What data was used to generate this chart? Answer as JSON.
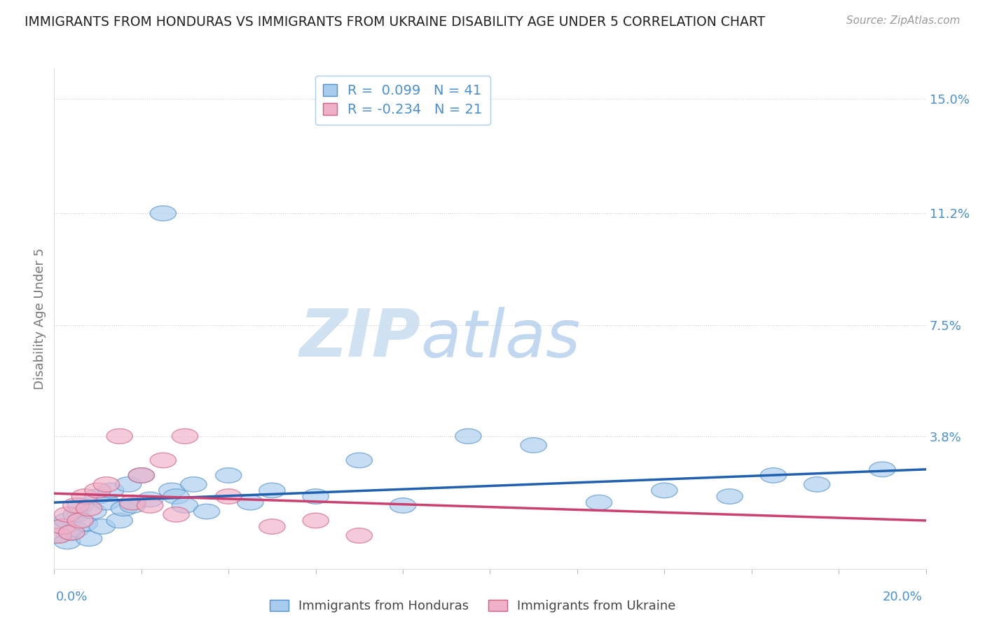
{
  "title": "IMMIGRANTS FROM HONDURAS VS IMMIGRANTS FROM UKRAINE DISABILITY AGE UNDER 5 CORRELATION CHART",
  "source": "Source: ZipAtlas.com",
  "ylabel": "Disability Age Under 5",
  "yticks": [
    0.0,
    0.038,
    0.075,
    0.112,
    0.15
  ],
  "ytick_labels": [
    "",
    "3.8%",
    "7.5%",
    "11.2%",
    "15.0%"
  ],
  "xmin": 0.0,
  "xmax": 0.2,
  "ymin": -0.006,
  "ymax": 0.16,
  "legend1_r": "R =  0.099",
  "legend1_n": "N = 41",
  "legend2_r": "R = -0.234",
  "legend2_n": "N = 21",
  "color_honduras_fill": "#A8CCEE",
  "color_honduras_edge": "#5090CC",
  "color_ukraine_fill": "#F0B0C8",
  "color_ukraine_edge": "#D06080",
  "color_line_honduras": "#2060B0",
  "color_line_ukraine": "#CC4070",
  "color_axis_text": "#4A90D0",
  "background": "#FFFFFF",
  "honduras_x": [
    0.001,
    0.002,
    0.003,
    0.003,
    0.004,
    0.005,
    0.005,
    0.006,
    0.007,
    0.008,
    0.009,
    0.01,
    0.011,
    0.012,
    0.013,
    0.015,
    0.016,
    0.017,
    0.018,
    0.02,
    0.022,
    0.025,
    0.027,
    0.028,
    0.03,
    0.032,
    0.035,
    0.04,
    0.045,
    0.05,
    0.06,
    0.07,
    0.08,
    0.095,
    0.11,
    0.125,
    0.14,
    0.155,
    0.165,
    0.175,
    0.19
  ],
  "honduras_y": [
    0.005,
    0.008,
    0.003,
    0.01,
    0.006,
    0.012,
    0.007,
    0.015,
    0.009,
    0.004,
    0.013,
    0.018,
    0.008,
    0.016,
    0.02,
    0.01,
    0.014,
    0.022,
    0.015,
    0.025,
    0.017,
    0.112,
    0.02,
    0.018,
    0.015,
    0.022,
    0.013,
    0.025,
    0.016,
    0.02,
    0.018,
    0.03,
    0.015,
    0.038,
    0.035,
    0.016,
    0.02,
    0.018,
    0.025,
    0.022,
    0.027
  ],
  "ukraine_x": [
    0.001,
    0.002,
    0.003,
    0.004,
    0.005,
    0.006,
    0.007,
    0.008,
    0.01,
    0.012,
    0.015,
    0.018,
    0.02,
    0.022,
    0.025,
    0.028,
    0.03,
    0.04,
    0.05,
    0.06,
    0.07
  ],
  "ukraine_y": [
    0.005,
    0.008,
    0.012,
    0.006,
    0.015,
    0.01,
    0.018,
    0.014,
    0.02,
    0.022,
    0.038,
    0.016,
    0.025,
    0.015,
    0.03,
    0.012,
    0.038,
    0.018,
    0.008,
    0.01,
    0.005
  ],
  "hon_line_x": [
    0.0,
    0.2
  ],
  "hon_line_y": [
    0.016,
    0.027
  ],
  "ukr_line_x": [
    0.0,
    0.2
  ],
  "ukr_line_y": [
    0.019,
    0.01
  ]
}
